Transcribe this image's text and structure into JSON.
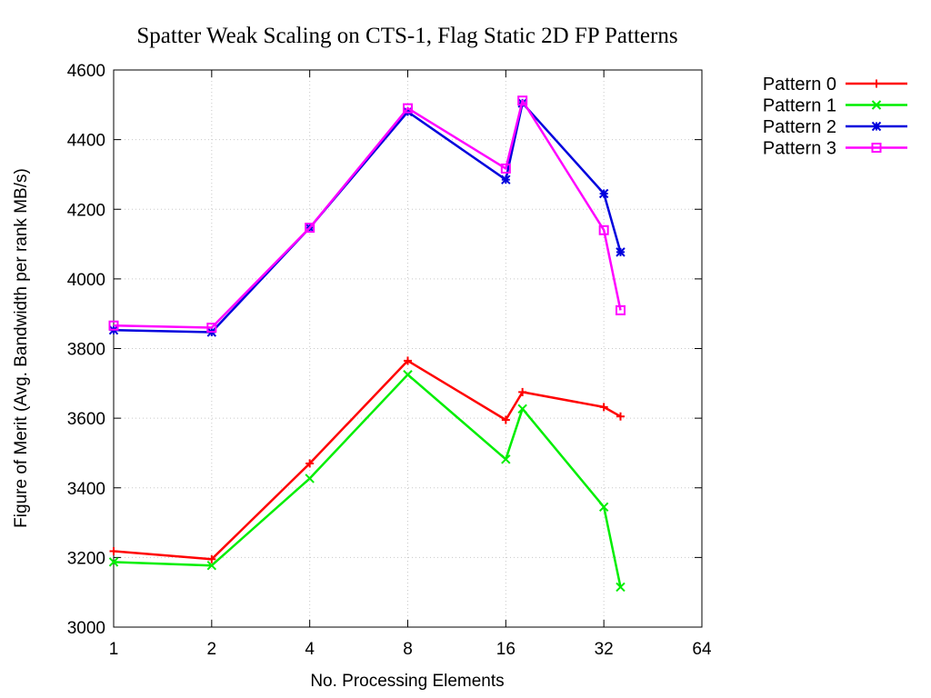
{
  "chart_data": {
    "type": "line",
    "title": "Spatter Weak Scaling on CTS-1, Flag Static 2D FP Patterns",
    "xlabel": "No. Processing Elements",
    "ylabel": "Figure of Merit (Avg. Bandwidth per rank MB/s)",
    "x_scale": "log2",
    "xlim": [
      1,
      64
    ],
    "ylim": [
      3000,
      4600
    ],
    "x_ticks": [
      1,
      2,
      4,
      8,
      16,
      32,
      64
    ],
    "y_ticks": [
      3000,
      3200,
      3400,
      3600,
      3800,
      4000,
      4200,
      4400,
      4600
    ],
    "grid": true,
    "legend_position": "outside-right-top",
    "x": [
      1,
      2,
      4,
      8,
      16,
      18,
      32,
      36
    ],
    "series": [
      {
        "name": "Pattern 0",
        "color": "#ff0000",
        "marker": "plus",
        "values": [
          3218,
          3195,
          3470,
          3765,
          3595,
          3675,
          3632,
          3605
        ]
      },
      {
        "name": "Pattern 1",
        "color": "#00ee00",
        "marker": "cross",
        "values": [
          3187,
          3177,
          3427,
          3725,
          3482,
          3627,
          3345,
          3115
        ]
      },
      {
        "name": "Pattern 2",
        "color": "#0000dd",
        "marker": "asterisk",
        "values": [
          3853,
          3847,
          4147,
          4480,
          4285,
          4505,
          4245,
          4077
        ]
      },
      {
        "name": "Pattern 3",
        "color": "#ff00ff",
        "marker": "square",
        "values": [
          3866,
          3860,
          4147,
          4490,
          4317,
          4512,
          4140,
          3910
        ]
      }
    ]
  }
}
